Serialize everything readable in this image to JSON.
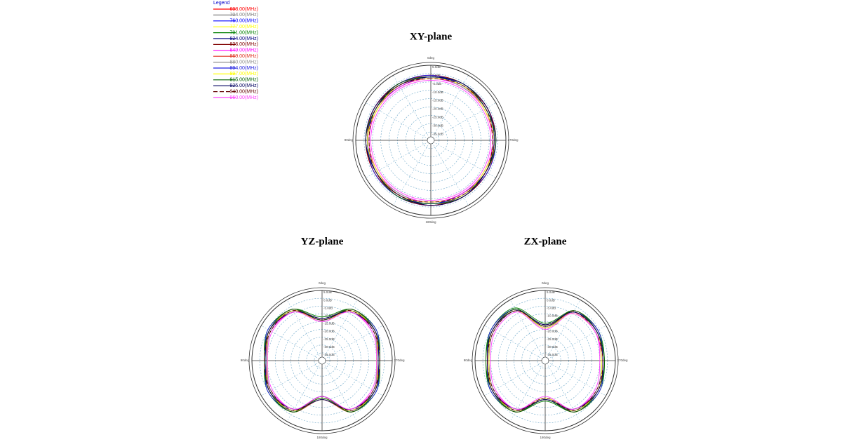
{
  "legend": {
    "title": "Legend",
    "entries": [
      {
        "name": "698.00(MHz)",
        "color": "#ff0000"
      },
      {
        "name": "704.00(MHz)",
        "color": "#808080"
      },
      {
        "name": "760.00(MHz)",
        "color": "#0000ff"
      },
      {
        "name": "777.00(MHz)",
        "color": "#ffff00"
      },
      {
        "name": "791.00(MHz)",
        "color": "#008000"
      },
      {
        "name": "824.00(MHz)",
        "color": "#000080"
      },
      {
        "name": "836.00(MHz)",
        "color": "#800000"
      },
      {
        "name": "849.00(MHz)",
        "color": "#ff00ff"
      },
      {
        "name": "869.00(MHz)",
        "color": "#e03020"
      },
      {
        "name": "880.00(MHz)",
        "color": "#909090"
      },
      {
        "name": "894.00(MHz)",
        "color": "#2020e0"
      },
      {
        "name": "897.00(MHz)",
        "color": "#ffff00"
      },
      {
        "name": "915.00(MHz)",
        "color": "#006000"
      },
      {
        "name": "925.00(MHz)",
        "color": "#000060"
      },
      {
        "name": "940.00(MHz)",
        "color": "#600000",
        "dashed": true
      },
      {
        "name": "960.00(MHz)",
        "color": "#ff40ff"
      }
    ]
  },
  "chart_data": [
    {
      "type": "polar",
      "title": "XY-plane",
      "theta": [
        0,
        30,
        60,
        90,
        120,
        150,
        180,
        210,
        240,
        270,
        300,
        330
      ],
      "rlim": [
        -40,
        5
      ],
      "rticks": [
        {
          "value": 5,
          "label": "5.0dB"
        },
        {
          "value": 0,
          "label": "0.0dB"
        },
        {
          "value": -5,
          "label": "-5.0dB"
        },
        {
          "value": -10,
          "label": "-10.0dB"
        },
        {
          "value": -15,
          "label": "-15.0dB"
        },
        {
          "value": -20,
          "label": "-20.0dB"
        },
        {
          "value": -25,
          "label": "-25.0dB"
        },
        {
          "value": -30,
          "label": "-30.0dB"
        },
        {
          "value": -35,
          "label": "-35.0dB"
        }
      ],
      "thetaticks": [
        {
          "value": 0,
          "label": "0deg"
        },
        {
          "value": 90,
          "label": "90deg"
        },
        {
          "value": 180,
          "label": "180deg"
        },
        {
          "value": 270,
          "label": "270deg"
        }
      ],
      "series": [
        {
          "values": [
            -1,
            -1,
            -2,
            -1,
            -1,
            -2,
            -1,
            -1,
            -2,
            -1,
            -1,
            -2
          ]
        },
        {
          "values": [
            -2,
            -2,
            -2,
            -2,
            -2,
            -2,
            -2,
            -2,
            -2,
            -2,
            -2,
            -2
          ]
        },
        {
          "values": [
            -2,
            -1,
            -1,
            -2,
            -2,
            -1,
            -1,
            -2,
            -2,
            -1,
            -1,
            -2
          ]
        },
        {
          "values": [
            -3,
            -3,
            -2,
            -3,
            -3,
            -2,
            -3,
            -3,
            -2,
            -3,
            -3,
            -2
          ]
        },
        {
          "values": [
            -1,
            -2,
            -2,
            -1,
            -2,
            -2,
            -1,
            -2,
            -2,
            -1,
            -2,
            -2
          ]
        },
        {
          "values": [
            -2,
            -3,
            -2,
            -2,
            -3,
            -2,
            -2,
            -3,
            -2,
            -2,
            -3,
            -2
          ]
        },
        {
          "values": [
            -1,
            -1,
            -1,
            -1,
            -1,
            -1,
            -1,
            -1,
            -1,
            -1,
            -1,
            -1
          ]
        },
        {
          "values": [
            -3,
            -3,
            -3,
            -3,
            -3,
            -3,
            -3,
            -3,
            -3,
            -3,
            -3,
            -3
          ]
        },
        {
          "values": [
            -1,
            -2,
            -1,
            -2,
            -1,
            -2,
            -1,
            -2,
            -1,
            -2,
            -1,
            -2
          ]
        },
        {
          "values": [
            -2,
            -2,
            -3,
            -2,
            -2,
            -3,
            -2,
            -2,
            -3,
            -2,
            -2,
            -3
          ]
        },
        {
          "values": [
            -1,
            -1,
            -2,
            -2,
            -1,
            -1,
            -2,
            -2,
            -1,
            -1,
            -2,
            -2
          ]
        },
        {
          "values": [
            -3,
            -2,
            -3,
            -2,
            -3,
            -2,
            -3,
            -2,
            -3,
            -2,
            -3,
            -2
          ]
        },
        {
          "values": [
            -2,
            -1,
            -2,
            -1,
            -2,
            -1,
            -2,
            -1,
            -2,
            -1,
            -2,
            -1
          ]
        },
        {
          "values": [
            -2,
            -2,
            -1,
            -1,
            -2,
            -2,
            -1,
            -1,
            -2,
            -2,
            -1,
            -1
          ]
        },
        {
          "values": [
            -3,
            -2,
            -2,
            -3,
            -2,
            -2,
            -3,
            -2,
            -2,
            -3,
            -2,
            -2
          ]
        },
        {
          "values": [
            -4,
            -4,
            -4,
            -4,
            -4,
            -4,
            -4,
            -4,
            -4,
            -4,
            -4,
            -4
          ]
        }
      ]
    },
    {
      "type": "polar",
      "title": "YZ-plane",
      "theta": [
        0,
        30,
        60,
        90,
        120,
        150,
        180,
        210,
        240,
        270,
        300,
        330
      ],
      "rlim": [
        -40,
        5
      ],
      "rticks": [
        {
          "value": 5,
          "label": "5.0dB"
        },
        {
          "value": 0,
          "label": "0.0dB"
        },
        {
          "value": -5,
          "label": "-5.0dB"
        },
        {
          "value": -10,
          "label": "-10.0dB"
        },
        {
          "value": -15,
          "label": "-15.0dB"
        },
        {
          "value": -20,
          "label": "-20.0dB"
        },
        {
          "value": -25,
          "label": "-25.0dB"
        },
        {
          "value": -30,
          "label": "-30.0dB"
        },
        {
          "value": -35,
          "label": "-35.0dB"
        }
      ],
      "thetaticks": [
        {
          "value": 0,
          "label": "0deg"
        },
        {
          "value": 90,
          "label": "90deg"
        },
        {
          "value": 180,
          "label": "180deg"
        },
        {
          "value": 270,
          "label": "270deg"
        }
      ],
      "series": [
        {
          "values": [
            -14,
            -3,
            -1,
            -4,
            -1,
            -3,
            -16,
            -3,
            -1,
            -4,
            -1,
            -3
          ]
        },
        {
          "values": [
            -13,
            -2,
            -1,
            -3,
            -1,
            -2,
            -15,
            -2,
            -1,
            -3,
            -1,
            -2
          ]
        },
        {
          "values": [
            -15,
            -3,
            -2,
            -4,
            -2,
            -3,
            -17,
            -3,
            -2,
            -4,
            -2,
            -3
          ]
        },
        {
          "values": [
            -14,
            -4,
            -2,
            -5,
            -2,
            -4,
            -16,
            -4,
            -2,
            -5,
            -2,
            -4
          ]
        },
        {
          "values": [
            -12,
            -2,
            0,
            -3,
            0,
            -2,
            -15,
            -2,
            0,
            -3,
            0,
            -2
          ]
        },
        {
          "values": [
            -14,
            -3,
            -1,
            -3,
            -1,
            -3,
            -16,
            -3,
            -1,
            -3,
            -1,
            -3
          ]
        },
        {
          "values": [
            -13,
            -3,
            -1,
            -4,
            -1,
            -3,
            -17,
            -3,
            -1,
            -4,
            -1,
            -3
          ]
        },
        {
          "values": [
            -15,
            -4,
            -2,
            -4,
            -2,
            -4,
            -16,
            -4,
            -2,
            -4,
            -2,
            -4
          ]
        },
        {
          "values": [
            -14,
            -2,
            -1,
            -4,
            -1,
            -2,
            -15,
            -2,
            -1,
            -4,
            -1,
            -2
          ]
        },
        {
          "values": [
            -13,
            -3,
            -2,
            -5,
            -2,
            -3,
            -16,
            -3,
            -2,
            -5,
            -2,
            -3
          ]
        },
        {
          "values": [
            -14,
            -3,
            0,
            -4,
            0,
            -3,
            -17,
            -3,
            0,
            -4,
            0,
            -3
          ]
        },
        {
          "values": [
            -15,
            -3,
            -1,
            -5,
            -1,
            -3,
            -16,
            -3,
            -1,
            -5,
            -1,
            -3
          ]
        },
        {
          "values": [
            -14,
            -2,
            -1,
            -3,
            -1,
            -2,
            -16,
            -2,
            -1,
            -3,
            -1,
            -2
          ]
        },
        {
          "values": [
            -13,
            -4,
            -1,
            -4,
            -1,
            -4,
            -15,
            -4,
            -1,
            -4,
            -1,
            -4
          ]
        },
        {
          "values": [
            -14,
            -3,
            -2,
            -3,
            -2,
            -3,
            -17,
            -3,
            -2,
            -3,
            -2,
            -3
          ]
        },
        {
          "values": [
            -15,
            -4,
            -3,
            -5,
            -3,
            -4,
            -17,
            -4,
            -3,
            -5,
            -3,
            -4
          ]
        }
      ]
    },
    {
      "type": "polar",
      "title": "ZX-plane",
      "theta": [
        0,
        30,
        60,
        90,
        120,
        150,
        180,
        210,
        240,
        270,
        300,
        330
      ],
      "rlim": [
        -40,
        5
      ],
      "rticks": [
        {
          "value": 5,
          "label": "5.0dB"
        },
        {
          "value": 0,
          "label": "0.0dB"
        },
        {
          "value": -5,
          "label": "-5.0dB"
        },
        {
          "value": -10,
          "label": "-10.0dB"
        },
        {
          "value": -15,
          "label": "-15.0dB"
        },
        {
          "value": -20,
          "label": "-20.0dB"
        },
        {
          "value": -25,
          "label": "-25.0dB"
        },
        {
          "value": -30,
          "label": "-30.0dB"
        },
        {
          "value": -35,
          "label": "-35.0dB"
        }
      ],
      "thetaticks": [
        {
          "value": 0,
          "label": "0deg"
        },
        {
          "value": 90,
          "label": "90deg"
        },
        {
          "value": 180,
          "label": "180deg"
        },
        {
          "value": 270,
          "label": "270deg"
        }
      ],
      "series": [
        {
          "values": [
            -18,
            -2,
            -1,
            -3,
            -1,
            -3,
            -15,
            -3,
            -1,
            -3,
            -2,
            -4
          ]
        },
        {
          "values": [
            -17,
            -2,
            0,
            -3,
            -1,
            -2,
            -15,
            -2,
            -1,
            -3,
            -1,
            -3
          ]
        },
        {
          "values": [
            -19,
            -3,
            -1,
            -4,
            -2,
            -3,
            -16,
            -3,
            -2,
            -4,
            -2,
            -4
          ]
        },
        {
          "values": [
            -18,
            -3,
            -2,
            -4,
            -2,
            -4,
            -16,
            -4,
            -2,
            -4,
            -3,
            -5
          ]
        },
        {
          "values": [
            -16,
            -1,
            0,
            -2,
            0,
            -2,
            -14,
            -2,
            0,
            -2,
            -1,
            -3
          ]
        },
        {
          "values": [
            -18,
            -2,
            -1,
            -3,
            -1,
            -3,
            -16,
            -3,
            -1,
            -3,
            -2,
            -4
          ]
        },
        {
          "values": [
            -17,
            -3,
            -1,
            -3,
            -1,
            -3,
            -15,
            -3,
            -1,
            -3,
            -2,
            -4
          ]
        },
        {
          "values": [
            -19,
            -3,
            -2,
            -4,
            -2,
            -4,
            -16,
            -4,
            -2,
            -4,
            -3,
            -5
          ]
        },
        {
          "values": [
            -18,
            -2,
            -1,
            -3,
            -1,
            -2,
            -15,
            -2,
            -1,
            -3,
            -2,
            -3
          ]
        },
        {
          "values": [
            -17,
            -3,
            -2,
            -4,
            -2,
            -3,
            -16,
            -3,
            -2,
            -4,
            -2,
            -4
          ]
        },
        {
          "values": [
            -18,
            -2,
            0,
            -3,
            0,
            -3,
            -15,
            -3,
            0,
            -3,
            -1,
            -4
          ]
        },
        {
          "values": [
            -19,
            -3,
            -1,
            -4,
            -1,
            -3,
            -16,
            -3,
            -1,
            -4,
            -2,
            -5
          ]
        },
        {
          "values": [
            -18,
            -2,
            -1,
            -2,
            -1,
            -2,
            -15,
            -2,
            -1,
            -2,
            -2,
            -3
          ]
        },
        {
          "values": [
            -17,
            -3,
            -1,
            -3,
            -1,
            -4,
            -15,
            -4,
            -1,
            -3,
            -2,
            -4
          ]
        },
        {
          "values": [
            -18,
            -3,
            -2,
            -3,
            -2,
            -3,
            -16,
            -3,
            -2,
            -3,
            -3,
            -4
          ]
        },
        {
          "values": [
            -20,
            -4,
            -3,
            -5,
            -3,
            -4,
            -17,
            -4,
            -3,
            -5,
            -3,
            -5
          ]
        }
      ]
    }
  ]
}
